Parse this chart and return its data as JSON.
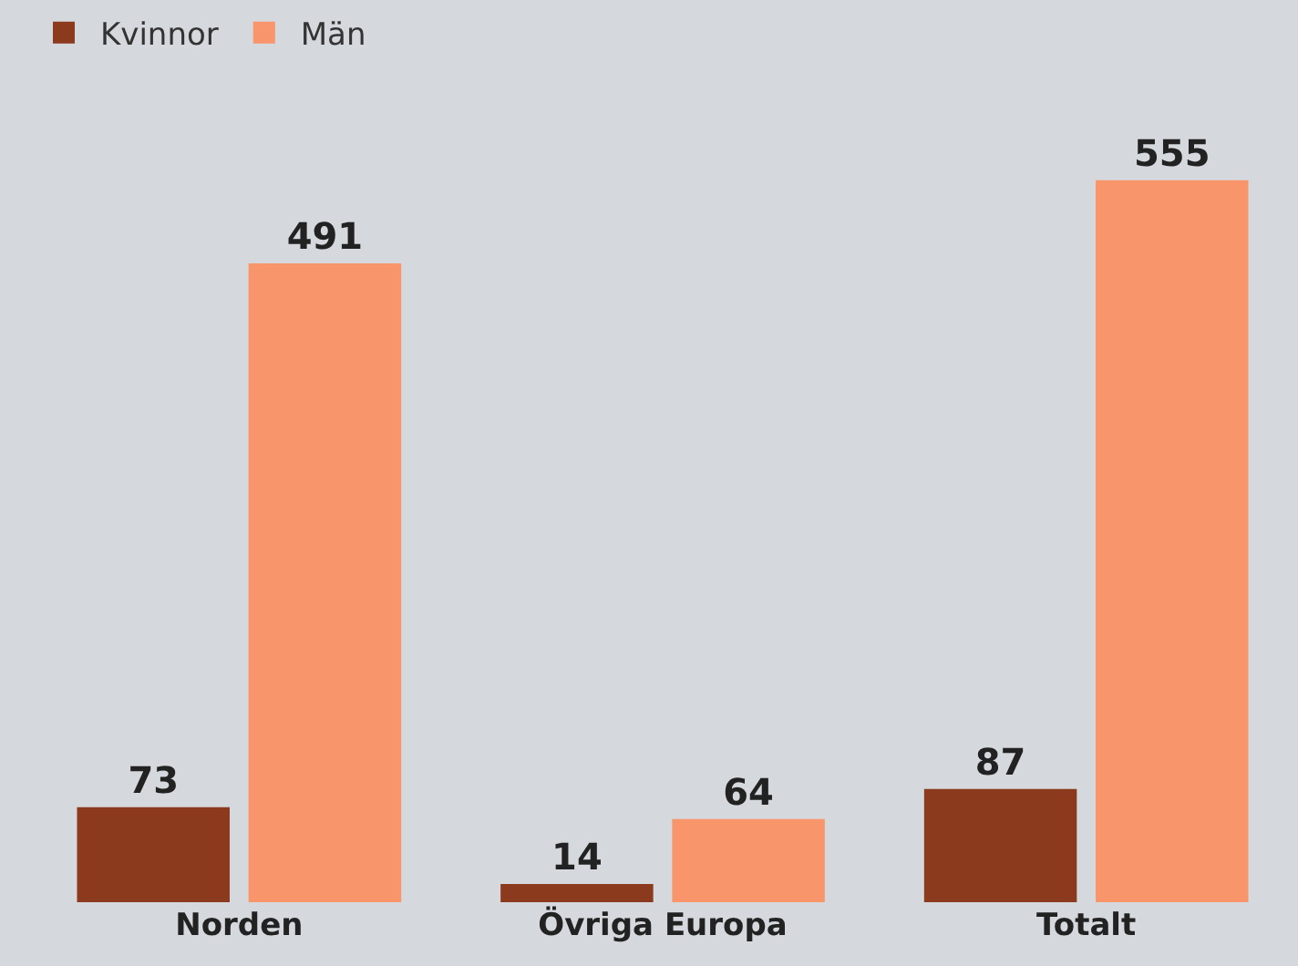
{
  "chart_data": {
    "type": "bar",
    "categories": [
      "Norden",
      "Övriga Europa",
      "Totalt"
    ],
    "series": [
      {
        "name": "Kvinnor",
        "color": "#8b3a1e",
        "values": [
          73,
          14,
          87
        ]
      },
      {
        "name": "Män",
        "color": "#f9956b",
        "values": [
          491,
          64,
          555
        ]
      }
    ],
    "data_labels": true,
    "legend": "top left"
  }
}
